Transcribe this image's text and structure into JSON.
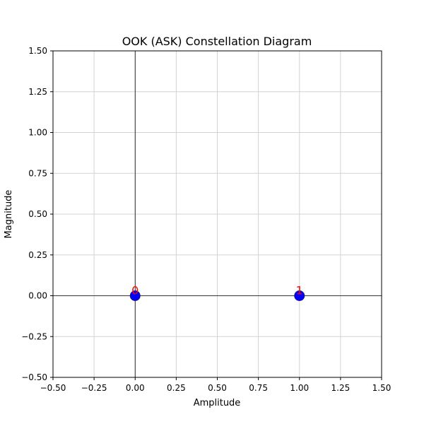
{
  "chart_data": {
    "type": "scatter",
    "title": "OOK (ASK) Constellation Diagram",
    "xlabel": "Amplitude",
    "ylabel": "Magnitude",
    "xlim": [
      -0.5,
      1.5
    ],
    "ylim": [
      -0.5,
      1.5
    ],
    "xticks": [
      "−0.50",
      "−0.25",
      "0.00",
      "0.25",
      "0.50",
      "0.75",
      "1.00",
      "1.25",
      "1.50"
    ],
    "yticks": [
      "−0.50",
      "−0.25",
      "0.00",
      "0.25",
      "0.50",
      "0.75",
      "1.00",
      "1.25",
      "1.50"
    ],
    "grid": true,
    "points": [
      {
        "x": 0,
        "y": 0,
        "label": "0"
      },
      {
        "x": 1,
        "y": 0,
        "label": "1"
      }
    ],
    "colors": {
      "marker": "#0000ff",
      "marker_edge": "#1a1a7a",
      "label": "#ff0000",
      "grid": "#d3d3d3",
      "axis_line": "#000000"
    }
  }
}
